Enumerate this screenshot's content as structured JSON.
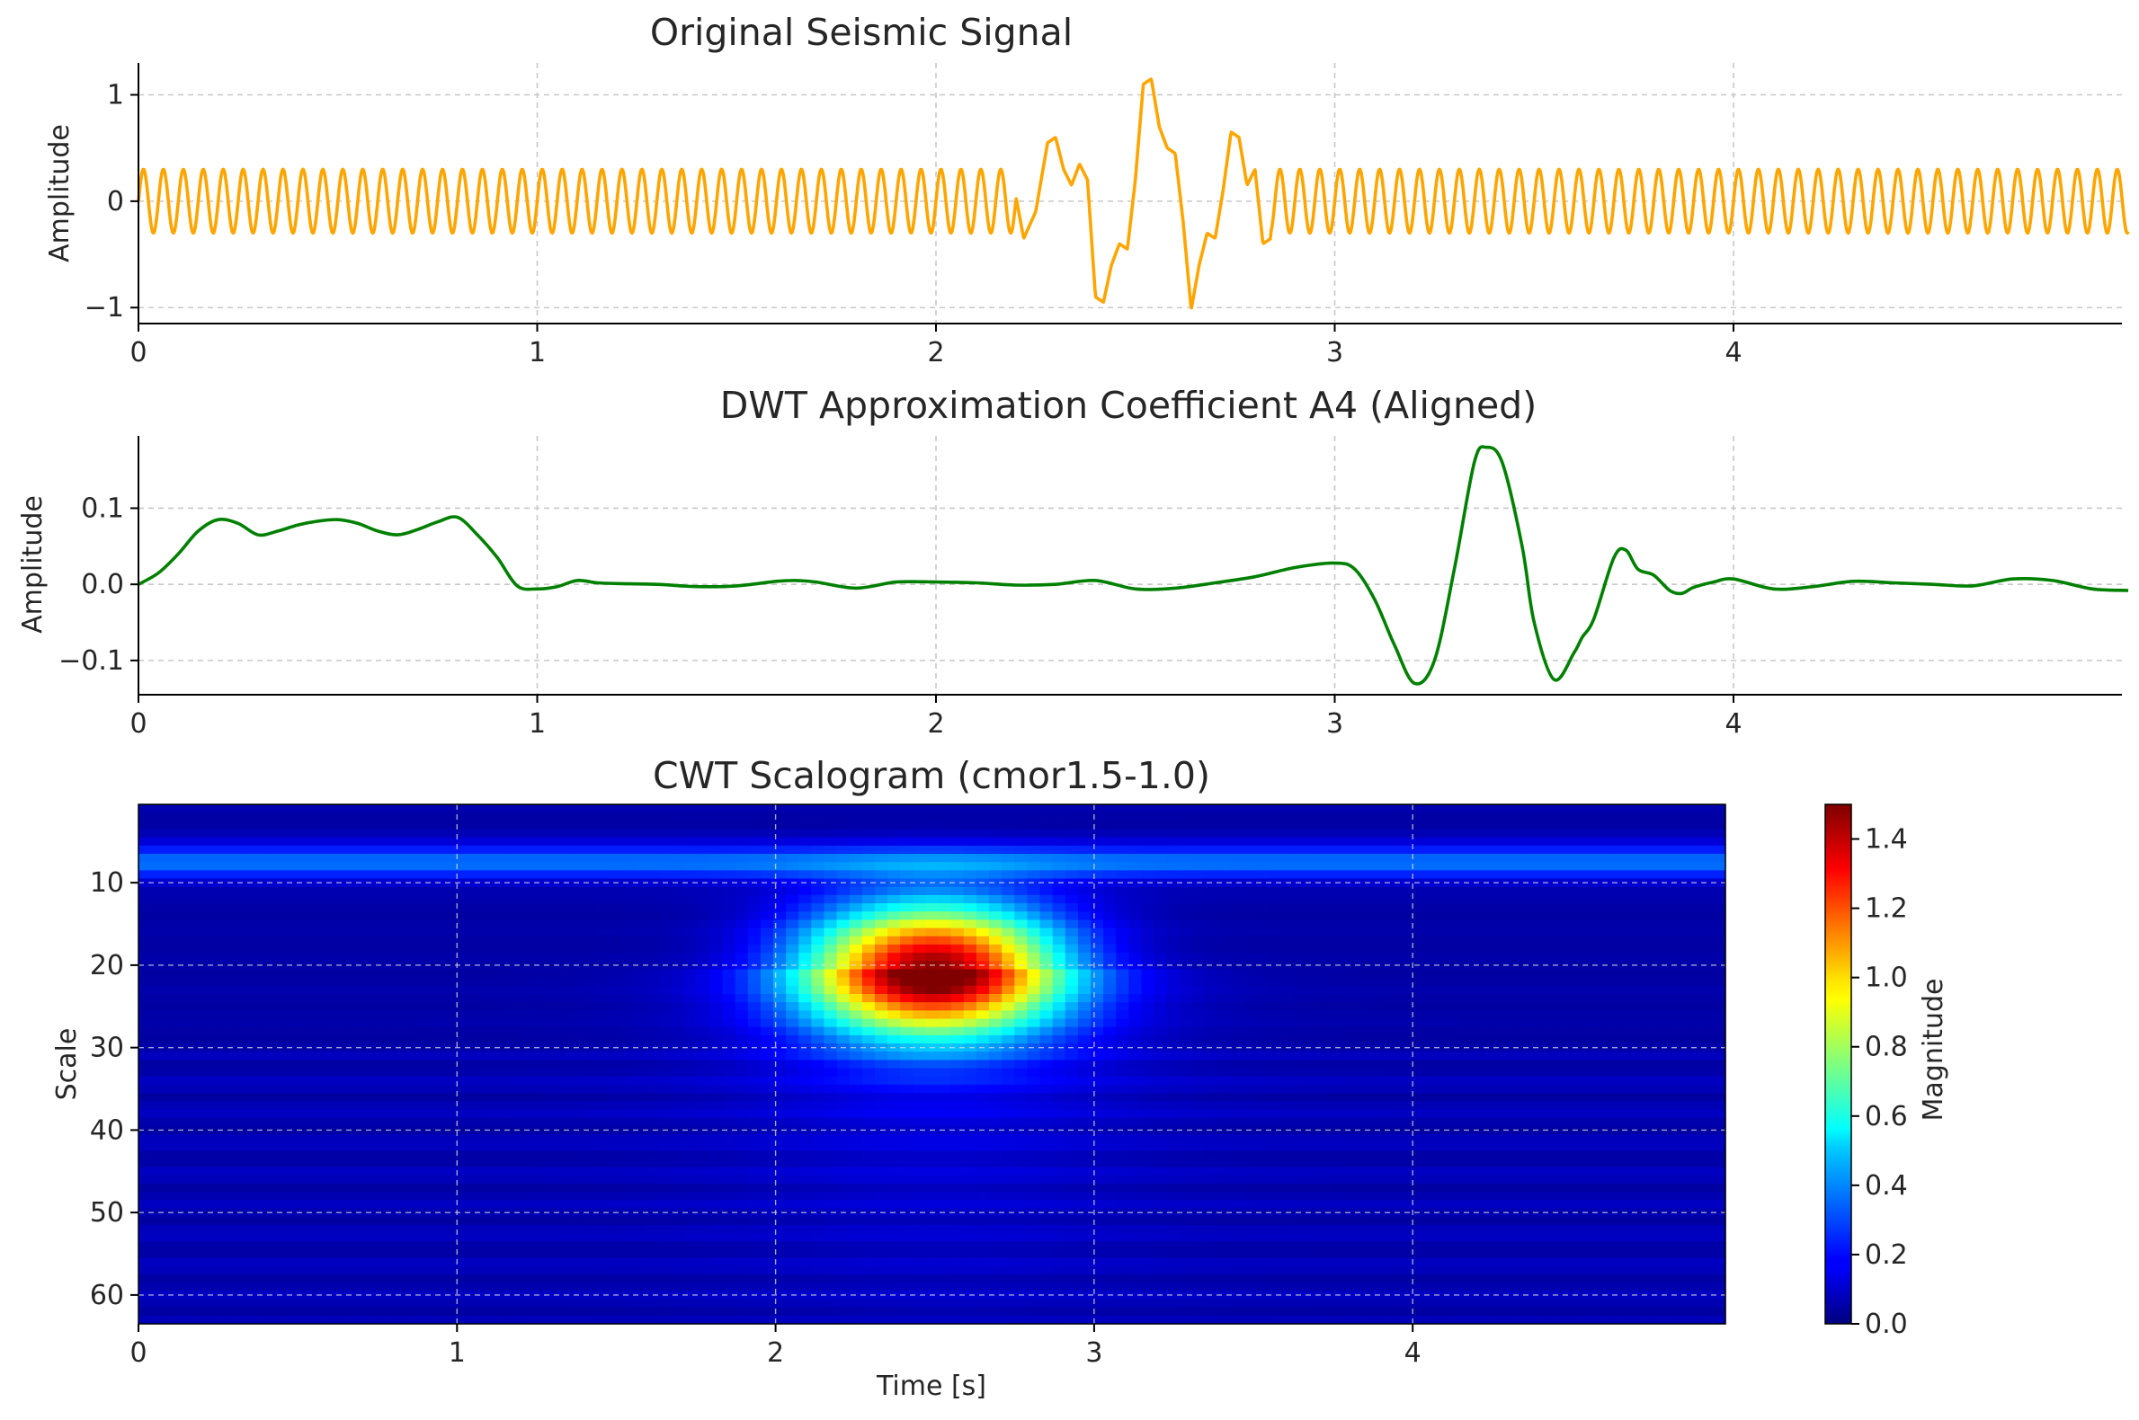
{
  "chart_data": [
    {
      "type": "line",
      "title": "Original Seismic Signal",
      "xlabel": "",
      "ylabel": "Amplitude",
      "xlim": [
        0,
        5.0
      ],
      "ylim": [
        -1.15,
        1.3
      ],
      "xticks": [
        "0",
        "1",
        "2",
        "3",
        "4"
      ],
      "yticks": [
        "−1",
        "0",
        "1"
      ],
      "grid": true,
      "color": "#FFA500",
      "series": [
        {
          "background": {
            "amplitude": 0.3,
            "frequency_hz": 20
          },
          "event_points": [
            [
              2.2,
              0.05
            ],
            [
              2.22,
              -0.35
            ],
            [
              2.25,
              -0.1
            ],
            [
              2.28,
              0.55
            ],
            [
              2.3,
              0.6
            ],
            [
              2.32,
              0.3
            ],
            [
              2.34,
              0.15
            ],
            [
              2.36,
              0.35
            ],
            [
              2.38,
              0.2
            ],
            [
              2.4,
              -0.9
            ],
            [
              2.42,
              -0.95
            ],
            [
              2.44,
              -0.6
            ],
            [
              2.46,
              -0.4
            ],
            [
              2.48,
              -0.45
            ],
            [
              2.5,
              0.2
            ],
            [
              2.52,
              1.1
            ],
            [
              2.54,
              1.15
            ],
            [
              2.56,
              0.7
            ],
            [
              2.58,
              0.5
            ],
            [
              2.6,
              0.45
            ],
            [
              2.62,
              -0.2
            ],
            [
              2.64,
              -1.02
            ],
            [
              2.66,
              -0.6
            ],
            [
              2.68,
              -0.3
            ],
            [
              2.7,
              -0.35
            ],
            [
              2.72,
              0.1
            ],
            [
              2.74,
              0.65
            ],
            [
              2.76,
              0.6
            ],
            [
              2.78,
              0.15
            ],
            [
              2.8,
              0.3
            ],
            [
              2.82,
              -0.4
            ],
            [
              2.84,
              -0.35
            ]
          ]
        }
      ]
    },
    {
      "type": "line",
      "title": "DWT Approximation Coefficient A4 (Aligned)",
      "xlabel": "",
      "ylabel": "Amplitude",
      "xlim": [
        0,
        5.0
      ],
      "ylim": [
        -0.145,
        0.195
      ],
      "xticks": [
        "0",
        "1",
        "2",
        "3",
        "4"
      ],
      "yticks": [
        "−0.1",
        "0.0",
        "0.1"
      ],
      "grid": true,
      "color": "#008000",
      "series": [
        {
          "x": [
            0,
            0.05,
            0.1,
            0.15,
            0.2,
            0.25,
            0.3,
            0.35,
            0.4,
            0.45,
            0.5,
            0.55,
            0.6,
            0.65,
            0.7,
            0.75,
            0.8,
            0.85,
            0.9,
            0.95,
            1.0,
            1.05,
            1.1,
            1.15,
            1.2,
            1.3,
            1.4,
            1.5,
            1.6,
            1.65,
            1.7,
            1.8,
            1.9,
            2.0,
            2.1,
            2.2,
            2.3,
            2.4,
            2.5,
            2.6,
            2.7,
            2.8,
            2.9,
            3.0,
            3.05,
            3.1,
            3.15,
            3.2,
            3.25,
            3.3,
            3.35,
            3.38,
            3.42,
            3.47,
            3.5,
            3.55,
            3.6,
            3.62,
            3.65,
            3.7,
            3.73,
            3.76,
            3.8,
            3.84,
            3.87,
            3.9,
            3.95,
            4.0,
            4.1,
            4.2,
            4.3,
            4.4,
            4.5,
            4.6,
            4.7,
            4.8,
            4.9,
            4.99
          ],
          "y": [
            0.0,
            0.015,
            0.04,
            0.07,
            0.085,
            0.08,
            0.065,
            0.07,
            0.078,
            0.083,
            0.085,
            0.08,
            0.07,
            0.065,
            0.072,
            0.082,
            0.088,
            0.065,
            0.035,
            -0.002,
            -0.006,
            -0.003,
            0.005,
            0.002,
            0.001,
            0.0,
            -0.003,
            -0.002,
            0.004,
            0.005,
            0.003,
            -0.005,
            0.003,
            0.003,
            0.002,
            -0.001,
            0.0,
            0.005,
            -0.006,
            -0.005,
            0.002,
            0.01,
            0.022,
            0.028,
            0.02,
            -0.02,
            -0.08,
            -0.13,
            -0.1,
            0.02,
            0.16,
            0.18,
            0.16,
            0.05,
            -0.05,
            -0.125,
            -0.09,
            -0.07,
            -0.045,
            0.035,
            0.045,
            0.02,
            0.012,
            -0.008,
            -0.012,
            -0.004,
            0.003,
            0.007,
            -0.006,
            -0.003,
            0.004,
            0.002,
            0.0,
            -0.002,
            0.007,
            0.005,
            -0.006,
            -0.008
          ]
        }
      ]
    },
    {
      "type": "heatmap",
      "title": "CWT Scalogram (cmor1.5-1.0)",
      "xlabel": "Time [s]",
      "ylabel": "Scale",
      "xlim": [
        0,
        5.0
      ],
      "ylim": [
        63,
        1
      ],
      "xticks": [
        "0",
        "1",
        "2",
        "3",
        "4"
      ],
      "yticks": [
        "10",
        "20",
        "30",
        "40",
        "50",
        "60"
      ],
      "grid": true,
      "colormap": "jet",
      "colorbar": {
        "label": "Magnitude",
        "range": [
          0,
          1.5
        ],
        "ticks": [
          "0.0",
          "0.2",
          "0.4",
          "0.6",
          "0.8",
          "1.0",
          "1.2",
          "1.4"
        ]
      },
      "features": [
        {
          "name": "background",
          "magnitude": 0.05
        },
        {
          "name": "band",
          "scale_center": 7.5,
          "scale_half_width": 2.6,
          "magnitude": 0.3
        },
        {
          "name": "blob",
          "time_center": 2.5,
          "scale_center": 20.5,
          "time_sigma": 0.28,
          "scale_sigma": 5.5,
          "magnitude": 1.42
        }
      ]
    }
  ]
}
